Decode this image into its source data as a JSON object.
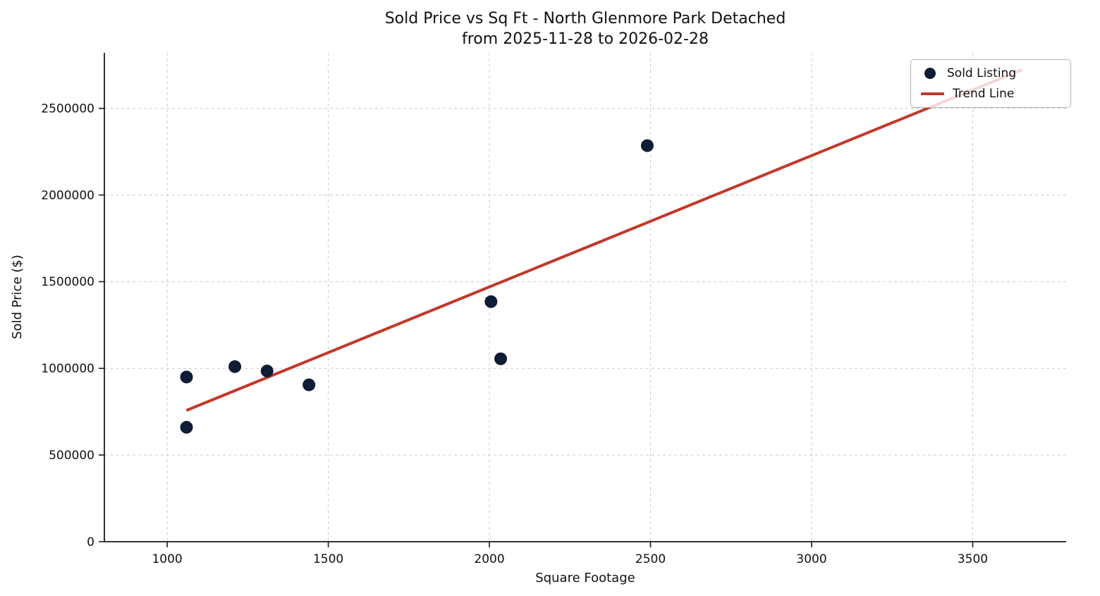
{
  "chart_data": {
    "type": "scatter",
    "title": "Sold Price vs Sq Ft - North Glenmore Park Detached",
    "subtitle": "from 2025-11-28 to 2026-02-28",
    "xlabel": "Square Footage",
    "ylabel": "Sold Price ($)",
    "xlim": [
      805,
      3790
    ],
    "ylim": [
      0,
      2820000
    ],
    "xticks": [
      1000,
      1500,
      2000,
      2500,
      3000,
      3500
    ],
    "yticks": [
      0,
      500000,
      1000000,
      1500000,
      2000000,
      2500000
    ],
    "grid": true,
    "colors": {
      "scatter": "#0e1c36",
      "trend": "#c0392b",
      "grid": "#cccccc"
    },
    "legend": {
      "position": "upper right",
      "entries": [
        {
          "label": "Sold Listing",
          "type": "marker"
        },
        {
          "label": "Trend Line",
          "type": "line"
        }
      ]
    },
    "series": [
      {
        "name": "Sold Listing",
        "type": "scatter",
        "color": "#0e1c36",
        "points": [
          {
            "x": 1060,
            "y": 950000
          },
          {
            "x": 1060,
            "y": 660000
          },
          {
            "x": 1210,
            "y": 1010000
          },
          {
            "x": 1310,
            "y": 985000
          },
          {
            "x": 1440,
            "y": 905000
          },
          {
            "x": 2005,
            "y": 1385000
          },
          {
            "x": 2035,
            "y": 1055000
          },
          {
            "x": 2490,
            "y": 2285000
          }
        ]
      },
      {
        "name": "Trend Line",
        "type": "line",
        "color": "#c0392b",
        "points": [
          {
            "x": 1063,
            "y": 760000
          },
          {
            "x": 3650,
            "y": 2720000
          }
        ]
      }
    ]
  }
}
